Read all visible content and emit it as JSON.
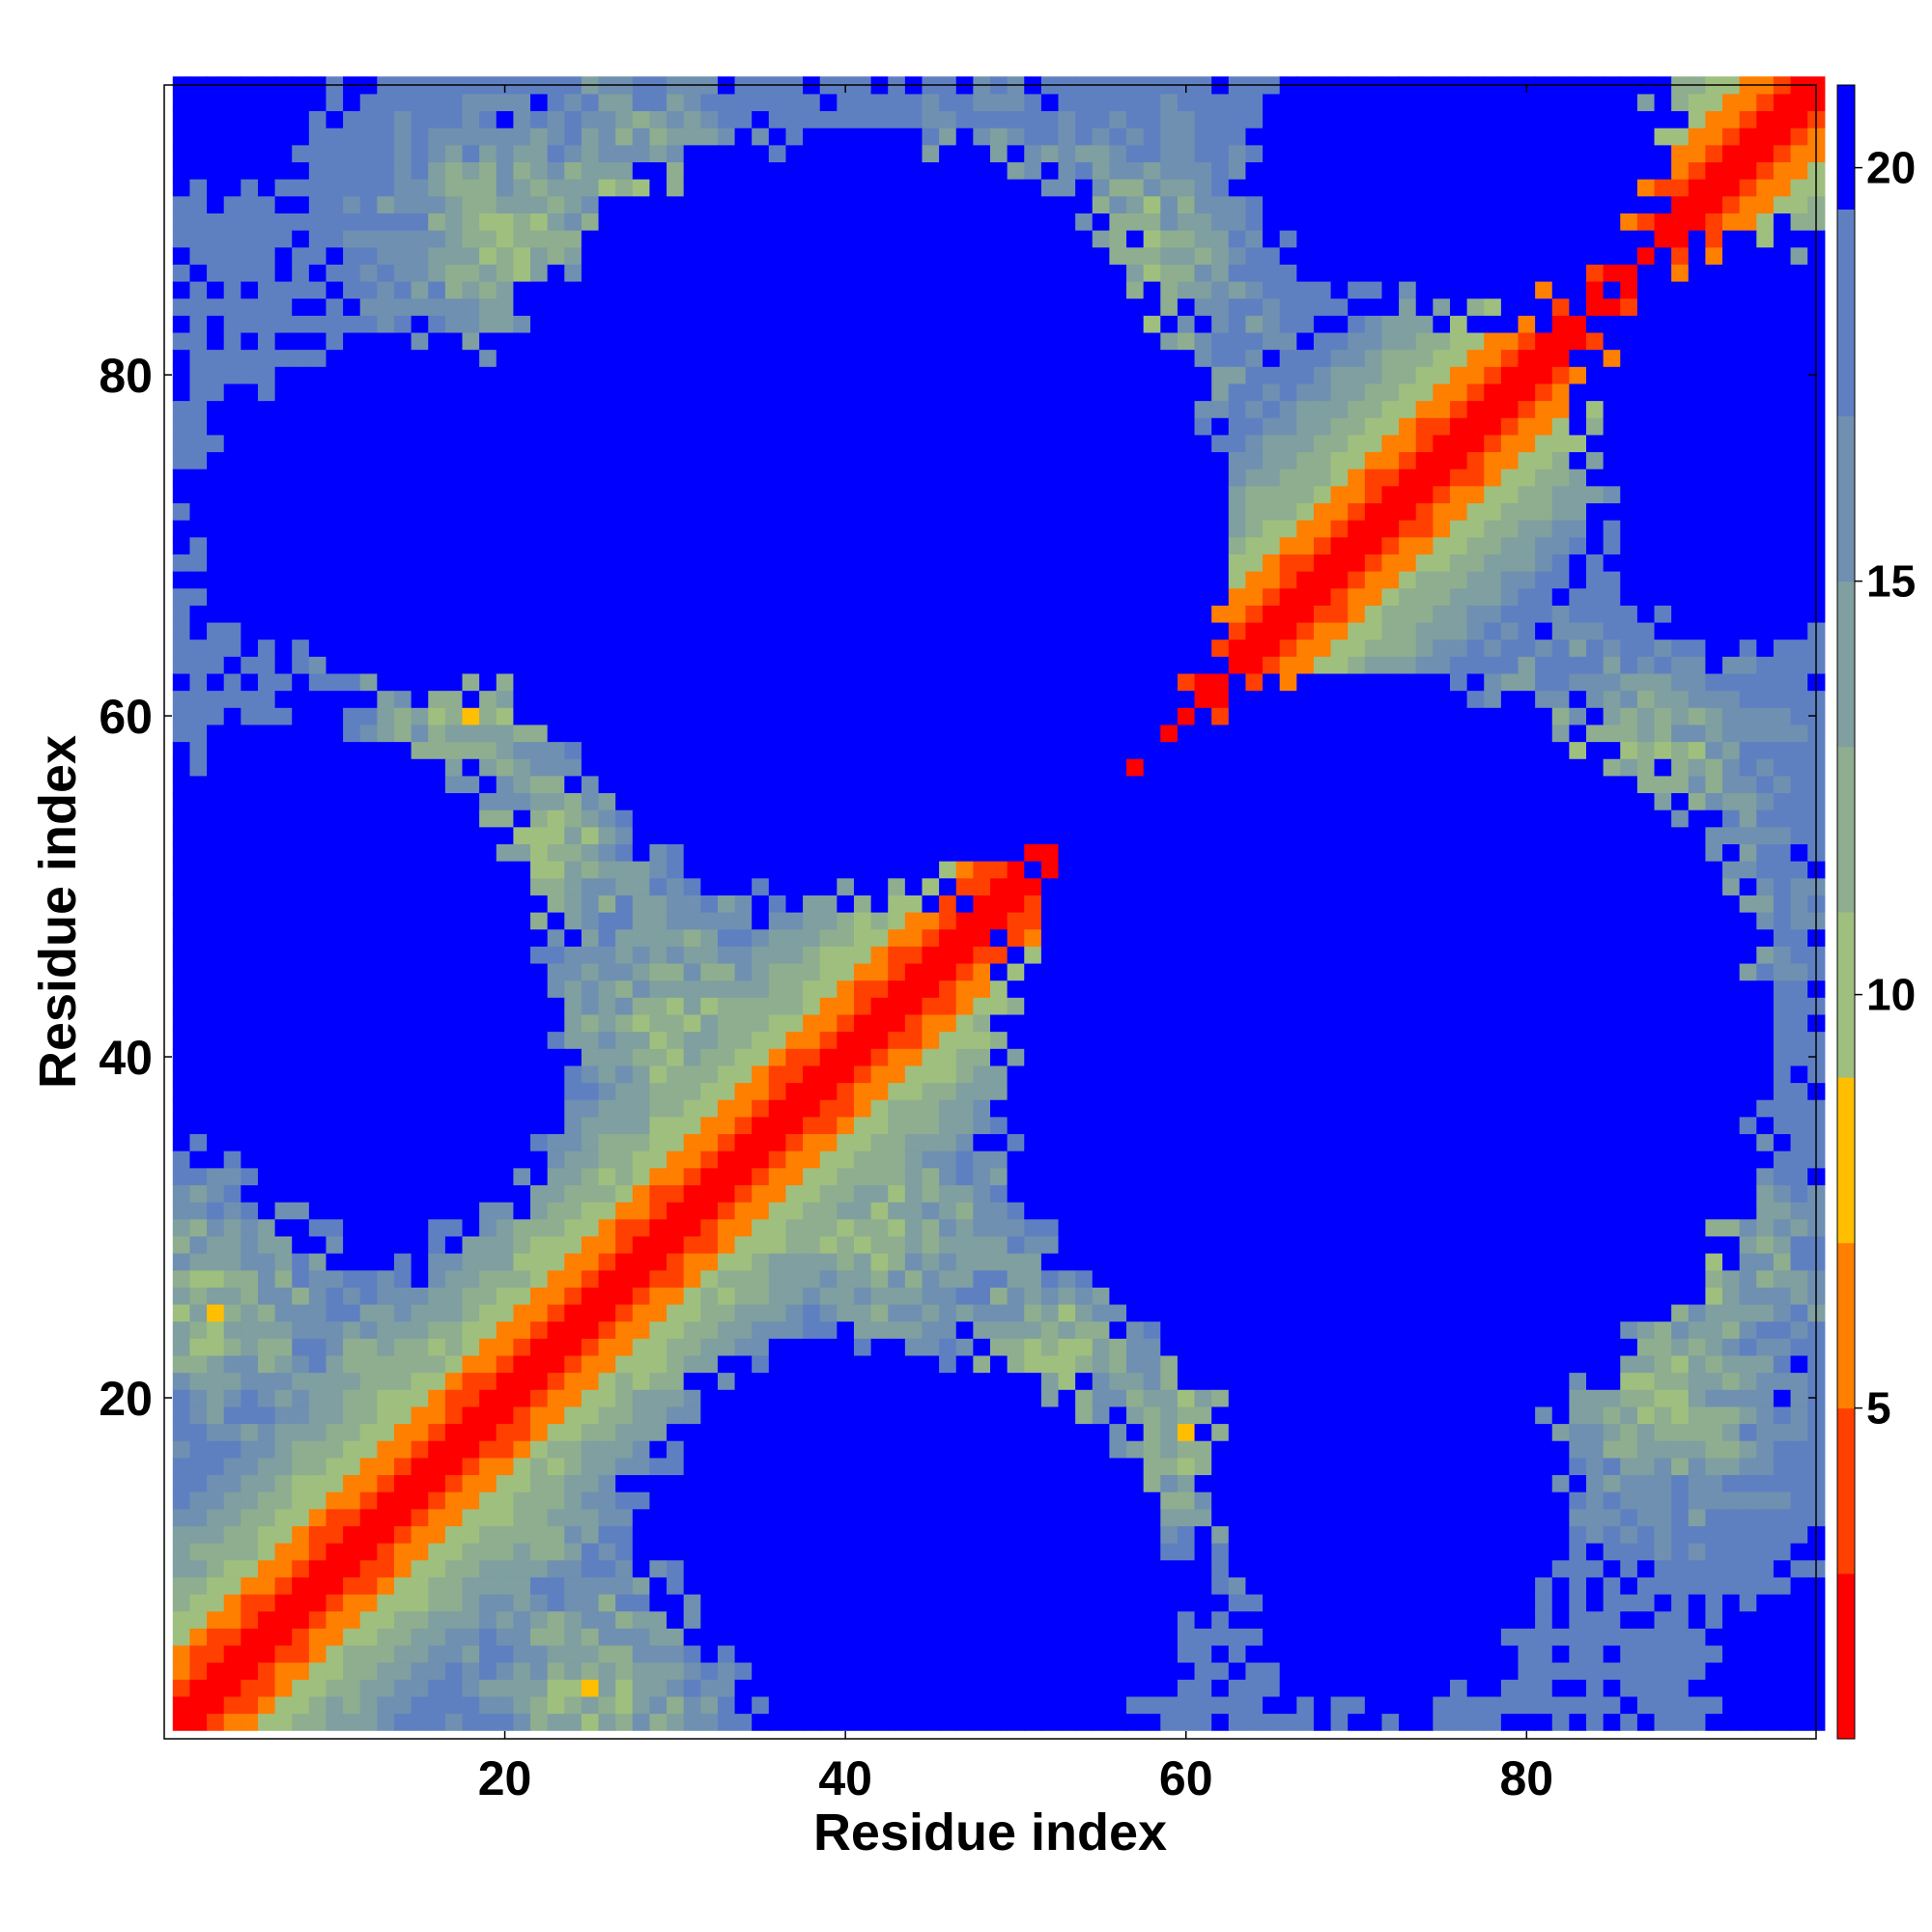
{
  "chart_data": {
    "type": "heatmap",
    "title": "",
    "xlabel": "Residue index",
    "ylabel": "Residue index",
    "n_residues": 97,
    "xlim": [
      1,
      97
    ],
    "ylim": [
      1,
      97
    ],
    "x_ticks": [
      20,
      40,
      60,
      80
    ],
    "y_ticks": [
      20,
      40,
      60,
      80
    ],
    "grid": false,
    "colorbar": {
      "position": "right",
      "ticks": [
        5,
        10,
        15,
        20
      ],
      "range": [
        1,
        21
      ],
      "colors": [
        "#ff0000",
        "#ff4000",
        "#ff7f00",
        "#ffbf00",
        "#9fbf7f",
        "#8fae8f",
        "#7f9fa0",
        "#6f90b0",
        "#5f80c0",
        "#0000ff"
      ],
      "boundaries": [
        1,
        3,
        5,
        7,
        9,
        11,
        13,
        15,
        17,
        19.5,
        21
      ]
    },
    "features": {
      "diagonal": "alpha-helical contact band along x = y",
      "contact_clusters": [
        {
          "x": 20,
          "y": 88
        },
        {
          "x": 22,
          "y": 52
        },
        {
          "x": 48,
          "y": 88
        },
        {
          "x": 57,
          "y": 84
        },
        {
          "x": 87,
          "y": 57
        },
        {
          "x": 90,
          "y": 28
        },
        {
          "x": 60,
          "y": 18
        },
        {
          "x": 25,
          "y": 3
        },
        {
          "x": 15,
          "y": 20
        },
        {
          "x": 42,
          "y": 30
        }
      ],
      "empty_regions": [
        {
          "x": 40,
          "y": 72,
          "r": 21
        },
        {
          "x": 70,
          "y": 42,
          "r": 19
        },
        {
          "x": 13,
          "y": 39,
          "r": 9
        },
        {
          "x": 15,
          "y": 72,
          "r": 9
        },
        {
          "x": 93,
          "y": 72,
          "r": 7
        },
        {
          "x": 46,
          "y": 9,
          "r": 12
        },
        {
          "x": 72,
          "y": 10,
          "r": 7
        },
        {
          "x": 78,
          "y": 94,
          "r": 9
        },
        {
          "x": 97,
          "y": 3,
          "r": 5
        }
      ]
    }
  }
}
